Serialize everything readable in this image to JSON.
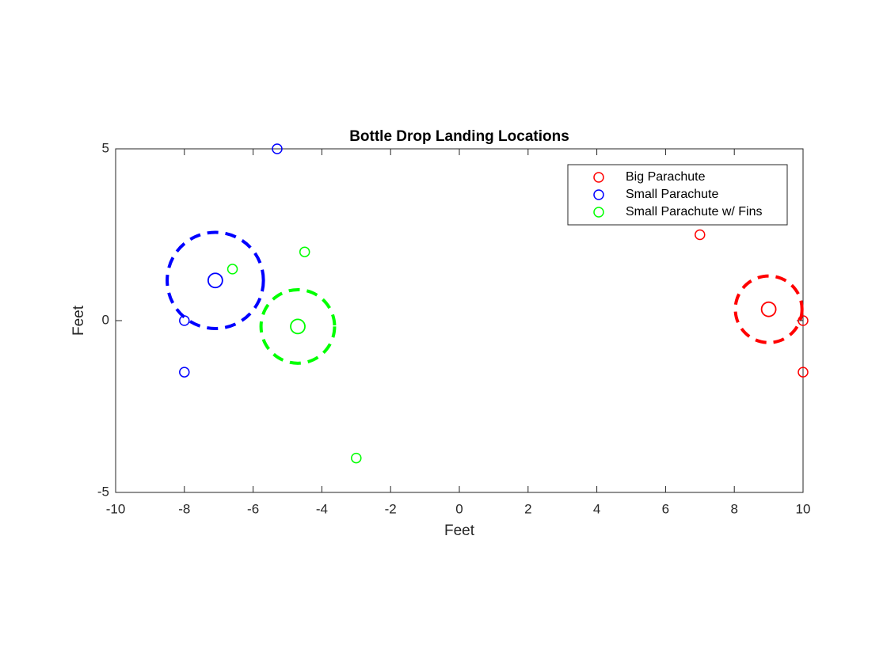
{
  "chart_data": {
    "type": "scatter",
    "title": "Bottle Drop Landing Locations",
    "x_label": "Feet",
    "y_label": "Feet",
    "xlim": [
      -10,
      10
    ],
    "xticks": [
      -10,
      -8,
      -6,
      -4,
      -2,
      0,
      2,
      4,
      6,
      8,
      10
    ],
    "ylim": [
      -5,
      5
    ],
    "yticks": [
      -5,
      0,
      5
    ],
    "legend_position": "upper right",
    "series": [
      {
        "name": "Big Parachute",
        "color": "#ff0000",
        "x": [
          7,
          10,
          10
        ],
        "values": [
          2.5,
          0,
          -1.5
        ],
        "center_x": 9,
        "center_y": 0.33,
        "radius": 0.97
      },
      {
        "name": "Small Parachute",
        "color": "#0000ff",
        "x": [
          -8,
          -8,
          -5.3
        ],
        "values": [
          0,
          -1.5,
          5
        ],
        "center_x": -7.1,
        "center_y": 1.17,
        "radius": 1.4
      },
      {
        "name": "Small Parachute w/ Fins",
        "color": "#00ff00",
        "x": [
          -6.6,
          -4.5,
          -3
        ],
        "values": [
          1.5,
          2,
          -4
        ],
        "center_x": -4.7,
        "center_y": -0.17,
        "radius": 1.07
      }
    ]
  }
}
